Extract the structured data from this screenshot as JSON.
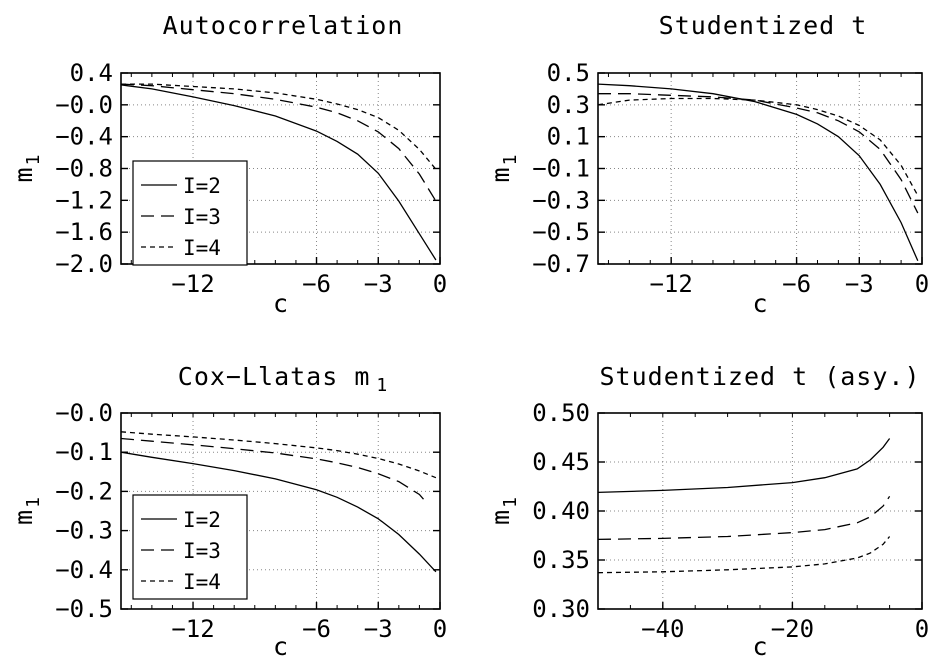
{
  "chart_data": [
    {
      "type": "line",
      "title": "Autocorrelation",
      "xlabel": "c",
      "ylabel": "m",
      "ylabel_sub": "1",
      "xlim": [
        -15.5,
        0
      ],
      "ylim": [
        -2.0,
        0.4
      ],
      "xticks": [
        -12,
        -6,
        -3,
        0
      ],
      "xtick_labels": [
        "−12",
        "−6",
        "−3",
        "0"
      ],
      "yticks": [
        0.4,
        0.0,
        -0.4,
        -0.8,
        -1.2,
        -1.6,
        -2.0
      ],
      "ytick_labels": [
        "0.4",
        "−0.0",
        "−0.4",
        "−0.8",
        "−1.2",
        "−1.6",
        "−2.0"
      ],
      "grid": true,
      "legend": "bottom-left",
      "series": [
        {
          "name": "I=2",
          "style": "solid",
          "x": [
            -15.5,
            -14,
            -12,
            -10,
            -8,
            -6,
            -5,
            -4,
            -3,
            -2,
            -1,
            -0.2
          ],
          "y": [
            0.25,
            0.2,
            0.1,
            -0.01,
            -0.14,
            -0.33,
            -0.46,
            -0.62,
            -0.86,
            -1.21,
            -1.62,
            -1.95
          ]
        },
        {
          "name": "I=3",
          "style": "dashed",
          "x": [
            -15.5,
            -14,
            -12,
            -10,
            -8,
            -6,
            -5,
            -4,
            -3,
            -2,
            -1,
            -0.2
          ],
          "y": [
            0.26,
            0.24,
            0.19,
            0.14,
            0.07,
            -0.03,
            -0.1,
            -0.2,
            -0.34,
            -0.55,
            -0.87,
            -1.21
          ]
        },
        {
          "name": "I=4",
          "style": "dotted",
          "x": [
            -15.5,
            -14,
            -12,
            -10,
            -8,
            -6,
            -5,
            -4,
            -3,
            -2,
            -1,
            -0.2
          ],
          "y": [
            0.26,
            0.26,
            0.23,
            0.2,
            0.15,
            0.07,
            0.01,
            -0.06,
            -0.16,
            -0.32,
            -0.56,
            -0.81
          ]
        }
      ]
    },
    {
      "type": "line",
      "title": "Studentized t",
      "xlabel": "c",
      "ylabel": "m",
      "ylabel_sub": "1",
      "xlim": [
        -15.5,
        0
      ],
      "ylim": [
        -0.7,
        0.5
      ],
      "xticks": [
        -12,
        -6,
        -3,
        0
      ],
      "xtick_labels": [
        "−12",
        "−6",
        "−3",
        "0"
      ],
      "yticks": [
        0.5,
        0.3,
        0.1,
        -0.1,
        -0.3,
        -0.5,
        -0.7
      ],
      "ytick_labels": [
        "0.5",
        "0.3",
        "0.1",
        "−0.1",
        "−0.3",
        "−0.5",
        "−0.7"
      ],
      "grid": true,
      "series": [
        {
          "name": "I=2",
          "style": "solid",
          "x": [
            -15.5,
            -14,
            -12,
            -10,
            -8,
            -6,
            -5,
            -4,
            -3,
            -2,
            -1,
            -0.2
          ],
          "y": [
            0.43,
            0.42,
            0.4,
            0.37,
            0.32,
            0.24,
            0.18,
            0.1,
            -0.02,
            -0.2,
            -0.44,
            -0.68
          ]
        },
        {
          "name": "I=3",
          "style": "dashed",
          "x": [
            -15.5,
            -14,
            -12,
            -10,
            -8,
            -6,
            -5,
            -4,
            -3,
            -2,
            -1,
            -0.2
          ],
          "y": [
            0.37,
            0.37,
            0.36,
            0.35,
            0.33,
            0.28,
            0.25,
            0.2,
            0.13,
            0.02,
            -0.17,
            -0.38
          ]
        },
        {
          "name": "I=4",
          "style": "dotted",
          "x": [
            -15.5,
            -14,
            -12,
            -10,
            -8,
            -6,
            -5,
            -4,
            -3,
            -2,
            -1,
            -0.2
          ],
          "y": [
            0.3,
            0.33,
            0.34,
            0.34,
            0.33,
            0.3,
            0.27,
            0.23,
            0.17,
            0.08,
            -0.08,
            -0.27
          ]
        }
      ]
    },
    {
      "type": "line",
      "title": "Cox−Llatas m",
      "title_sub": "1",
      "xlabel": "c",
      "ylabel": "m",
      "ylabel_sub": "1",
      "xlim": [
        -15.5,
        0
      ],
      "ylim": [
        -0.5,
        0.0
      ],
      "xticks": [
        -12,
        -6,
        -3,
        0
      ],
      "xtick_labels": [
        "−12",
        "−6",
        "−3",
        "0"
      ],
      "yticks": [
        0.0,
        -0.1,
        -0.2,
        -0.3,
        -0.4,
        -0.5
      ],
      "ytick_labels": [
        "−0.0",
        "−0.1",
        "−0.2",
        "−0.3",
        "−0.4",
        "−0.5"
      ],
      "grid": true,
      "legend": "bottom-left",
      "series": [
        {
          "name": "I=2",
          "style": "solid",
          "x": [
            -15.5,
            -14,
            -12,
            -10,
            -8,
            -6,
            -5,
            -4,
            -3,
            -2,
            -1,
            -0.2
          ],
          "y": [
            -0.1,
            -0.113,
            -0.129,
            -0.147,
            -0.168,
            -0.196,
            -0.215,
            -0.24,
            -0.27,
            -0.31,
            -0.36,
            -0.405
          ]
        },
        {
          "name": "I=3",
          "style": "dashed",
          "x": [
            -15.5,
            -14,
            -12,
            -10,
            -8,
            -6,
            -5,
            -4,
            -3,
            -2,
            -1,
            -0.8
          ],
          "y": [
            -0.065,
            -0.072,
            -0.081,
            -0.091,
            -0.102,
            -0.117,
            -0.127,
            -0.139,
            -0.155,
            -0.175,
            -0.208,
            -0.22
          ]
        },
        {
          "name": "I=4",
          "style": "dotted",
          "x": [
            -15.5,
            -14,
            -12,
            -10,
            -8,
            -6,
            -5,
            -4,
            -3,
            -2,
            -1,
            -0.2
          ],
          "y": [
            -0.048,
            -0.054,
            -0.061,
            -0.069,
            -0.078,
            -0.089,
            -0.096,
            -0.105,
            -0.116,
            -0.13,
            -0.148,
            -0.165
          ]
        }
      ]
    },
    {
      "type": "line",
      "title": "Studentized t (asy.)",
      "xlabel": "c",
      "ylabel": "m",
      "ylabel_sub": "1",
      "xlim": [
        -50,
        0
      ],
      "ylim": [
        0.3,
        0.5
      ],
      "xticks": [
        -40,
        -20,
        0
      ],
      "xtick_labels": [
        "−40",
        "−20",
        "0"
      ],
      "yticks": [
        0.5,
        0.45,
        0.4,
        0.35,
        0.3
      ],
      "ytick_labels": [
        "0.50",
        "0.45",
        "0.40",
        "0.35",
        "0.30"
      ],
      "grid": true,
      "series": [
        {
          "name": "I=2",
          "style": "solid",
          "x": [
            -50,
            -40,
            -30,
            -20,
            -15,
            -10,
            -8,
            -6,
            -5
          ],
          "y": [
            0.419,
            0.421,
            0.424,
            0.429,
            0.434,
            0.443,
            0.452,
            0.465,
            0.474
          ]
        },
        {
          "name": "I=3",
          "style": "dashed",
          "x": [
            -50,
            -40,
            -30,
            -20,
            -15,
            -10,
            -8,
            -6,
            -5
          ],
          "y": [
            0.371,
            0.372,
            0.374,
            0.378,
            0.381,
            0.388,
            0.394,
            0.405,
            0.415
          ]
        },
        {
          "name": "I=4",
          "style": "dotted",
          "x": [
            -50,
            -40,
            -30,
            -20,
            -15,
            -10,
            -8,
            -6,
            -5
          ],
          "y": [
            0.337,
            0.338,
            0.34,
            0.343,
            0.346,
            0.352,
            0.357,
            0.366,
            0.374
          ]
        }
      ]
    }
  ]
}
